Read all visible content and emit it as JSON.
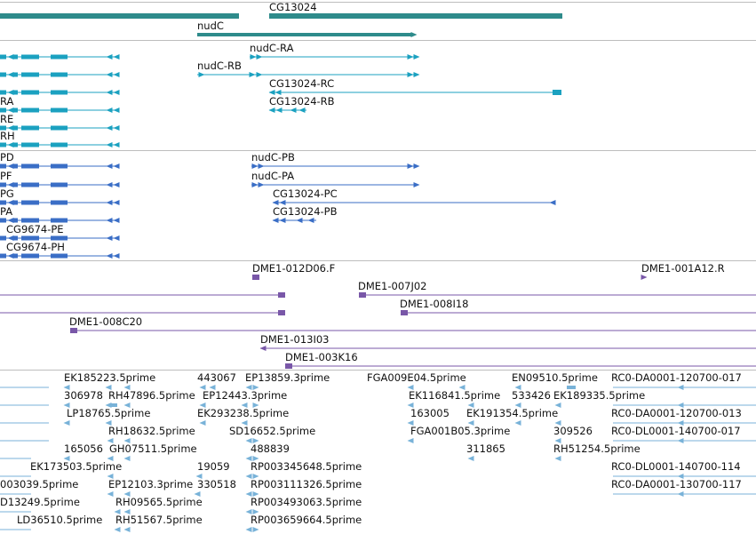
{
  "colors": {
    "background": "#ffffff",
    "divider": "#bdbdbd",
    "gene": "#2e8b8b",
    "transcript": "#1ba1c0",
    "protein": "#3a6ec6",
    "clone": "#7957a8",
    "est": "#78b2d8",
    "label": "#111111"
  },
  "tracks": {
    "genes": {
      "name": "gene-track",
      "labels": [
        {
          "text": "CG13024"
        },
        {
          "text": "nudC"
        }
      ]
    },
    "transcripts": {
      "name": "transcript-track",
      "labels": [
        {
          "text": "nudC-RA"
        },
        {
          "text": "nudC-RB"
        },
        {
          "text": "CG13024-RC"
        },
        {
          "text": "CG13024-RB"
        },
        {
          "text": "RA"
        },
        {
          "text": "RE"
        },
        {
          "text": "RH"
        }
      ]
    },
    "proteins": {
      "name": "protein-track",
      "labels": [
        {
          "text": "PD"
        },
        {
          "text": "PF"
        },
        {
          "text": "PG"
        },
        {
          "text": "PA"
        },
        {
          "text": "nudC-PB"
        },
        {
          "text": "nudC-PA"
        },
        {
          "text": "CG13024-PC"
        },
        {
          "text": "CG13024-PB"
        },
        {
          "text": "CG9674-PE"
        },
        {
          "text": "CG9674-PH"
        }
      ]
    },
    "clones": {
      "name": "clone-track",
      "labels": [
        {
          "text": "DME1-012D06.F"
        },
        {
          "text": "DME1-001A12.R"
        },
        {
          "text": "DME1-007J02"
        },
        {
          "text": "DME1-008I18"
        },
        {
          "text": "DME1-008C20"
        },
        {
          "text": "DME1-013I03"
        },
        {
          "text": "DME1-003K16"
        }
      ]
    },
    "ests": {
      "name": "est-track",
      "labels": [
        {
          "text": "EK185223.5prime"
        },
        {
          "text": "443067"
        },
        {
          "text": "EP13859.3prime"
        },
        {
          "text": "FGA009E04.5prime"
        },
        {
          "text": "EN09510.5prime"
        },
        {
          "text": "RC0-DA0001-120700-017"
        },
        {
          "text": "306978"
        },
        {
          "text": "RH47896.5prime"
        },
        {
          "text": "EP12443.3prime"
        },
        {
          "text": "EK116841.5prime"
        },
        {
          "text": "533426"
        },
        {
          "text": "EK189335.5prime"
        },
        {
          "text": "LP18765.5prime"
        },
        {
          "text": "EK293238.5prime"
        },
        {
          "text": "163005"
        },
        {
          "text": "EK191354.5prime"
        },
        {
          "text": "RC0-DA0001-120700-013"
        },
        {
          "text": "RH18632.5prime"
        },
        {
          "text": "SD16652.5prime"
        },
        {
          "text": "FGA001B05.3prime"
        },
        {
          "text": "309526"
        },
        {
          "text": "RC0-DL0001-140700-017"
        },
        {
          "text": "165056"
        },
        {
          "text": "GH07511.5prime"
        },
        {
          "text": "488839"
        },
        {
          "text": "311865"
        },
        {
          "text": "RH51254.5prime"
        },
        {
          "text": "EK173503.5prime"
        },
        {
          "text": "19059"
        },
        {
          "text": "RP003345648.5prime"
        },
        {
          "text": "RC0-DL0001-140700-114"
        },
        {
          "text": "003039.5prime"
        },
        {
          "text": "EP12103.3prime"
        },
        {
          "text": "330518"
        },
        {
          "text": "RP003111326.5prime"
        },
        {
          "text": "RC0-DA0001-130700-117"
        },
        {
          "text": "D13249.5prime"
        },
        {
          "text": "RH09565.5prime"
        },
        {
          "text": "RP003493063.5prime"
        },
        {
          "text": "LD36510.5prime"
        },
        {
          "text": "RH51567.5prime"
        },
        {
          "text": "RP003659664.5prime"
        }
      ]
    }
  }
}
